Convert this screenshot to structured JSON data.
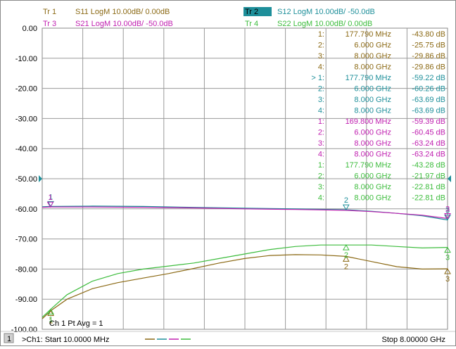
{
  "traces": [
    {
      "label": "Tr 1",
      "desc": "S11 LogM 10.00dB/  0.00dB",
      "color": "#8b6914",
      "active": false
    },
    {
      "label": "Tr 2",
      "desc": "S12 LogM 10.00dB/  -50.0dB",
      "color": "#1e8f9a",
      "active": true
    },
    {
      "label": "Tr 3",
      "desc": "S21 LogM 10.00dB/  -50.0dB",
      "color": "#c020b0",
      "active": false
    },
    {
      "label": "Tr 4",
      "desc": "S22 LogM 10.00dB/  0.00dB",
      "color": "#3cbc3c",
      "active": false
    }
  ],
  "marker_table": [
    {
      "id": "1:",
      "freq": "177.790 MHz",
      "value": "-43.80 dB",
      "color": "#8b6914"
    },
    {
      "id": "2:",
      "freq": "6.000 GHz",
      "value": "-25.75 dB",
      "color": "#8b6914"
    },
    {
      "id": "3:",
      "freq": "8.000 GHz",
      "value": "-29.86 dB",
      "color": "#8b6914"
    },
    {
      "id": "4:",
      "freq": "8.000 GHz",
      "value": "-29.86 dB",
      "color": "#8b6914"
    },
    {
      "id": "> 1:",
      "freq": "177.790 MHz",
      "value": "-59.22 dB",
      "color": "#1e8f9a"
    },
    {
      "id": "2:",
      "freq": "6.000 GHz",
      "value": "-60.26 dB",
      "color": "#1e8f9a"
    },
    {
      "id": "3:",
      "freq": "8.000 GHz",
      "value": "-63.69 dB",
      "color": "#1e8f9a"
    },
    {
      "id": "4:",
      "freq": "8.000 GHz",
      "value": "-63.69 dB",
      "color": "#1e8f9a"
    },
    {
      "id": "1:",
      "freq": "169.800 MHz",
      "value": "-59.39 dB",
      "color": "#c020b0"
    },
    {
      "id": "2:",
      "freq": "6.000 GHz",
      "value": "-60.45 dB",
      "color": "#c020b0"
    },
    {
      "id": "3:",
      "freq": "8.000 GHz",
      "value": "-63.24 dB",
      "color": "#c020b0"
    },
    {
      "id": "4:",
      "freq": "8.000 GHz",
      "value": "-63.24 dB",
      "color": "#c020b0"
    },
    {
      "id": "1:",
      "freq": "177.790 MHz",
      "value": "-43.28 dB",
      "color": "#3cbc3c"
    },
    {
      "id": "2:",
      "freq": "6.000 GHz",
      "value": "-21.97 dB",
      "color": "#3cbc3c"
    },
    {
      "id": "3:",
      "freq": "8.000 GHz",
      "value": "-22.81 dB",
      "color": "#3cbc3c"
    },
    {
      "id": "4:",
      "freq": "8.000 GHz",
      "value": "-22.81 dB",
      "color": "#3cbc3c"
    }
  ],
  "avg_text": "Ch 1 Pt Avg = 1",
  "footer": {
    "channel_num": "1",
    "start_text": ">Ch1: Start  10.0000 MHz",
    "stop_text": "Stop  8.00000 GHz",
    "trace_colors": [
      "#8b6914",
      "#1e8f9a",
      "#c020b0",
      "#3cbc3c"
    ]
  },
  "chart_data": {
    "type": "line",
    "xlim": [
      0.01,
      8.0
    ],
    "ylim": [
      -100,
      0
    ],
    "grid": true,
    "yticks": [
      "0.00",
      "-10.00",
      "-20.00",
      "-30.00",
      "-40.00",
      "-50.00",
      "-60.00",
      "-70.00",
      "-80.00",
      "-90.00",
      "-100.00"
    ],
    "reference_level": -50,
    "series": [
      {
        "name": "S11",
        "color": "#8b6914",
        "x": [
          0.01,
          0.18,
          0.5,
          1.0,
          1.5,
          2.0,
          2.5,
          3.0,
          3.5,
          4.0,
          4.5,
          5.0,
          5.5,
          6.0,
          6.5,
          7.0,
          7.5,
          8.0
        ],
        "y": [
          -96.5,
          -93.8,
          -90.0,
          -86.5,
          -84.5,
          -83.0,
          -81.5,
          -79.8,
          -78.0,
          -76.5,
          -75.5,
          -75.2,
          -75.3,
          -75.8,
          -77.5,
          -79.2,
          -80.0,
          -79.9
        ]
      },
      {
        "name": "S12",
        "color": "#1e8f9a",
        "x": [
          0.01,
          0.18,
          1.0,
          2.0,
          3.0,
          4.0,
          5.0,
          6.0,
          6.5,
          7.0,
          7.5,
          8.0
        ],
        "y": [
          -59.3,
          -59.2,
          -59.1,
          -59.2,
          -59.5,
          -59.8,
          -60.0,
          -60.3,
          -60.8,
          -61.5,
          -62.3,
          -63.7
        ]
      },
      {
        "name": "S21",
        "color": "#c020b0",
        "x": [
          0.01,
          0.17,
          1.0,
          2.0,
          3.0,
          4.0,
          5.0,
          6.0,
          6.5,
          7.0,
          7.5,
          8.0
        ],
        "y": [
          -59.5,
          -59.4,
          -59.4,
          -59.5,
          -59.7,
          -60.0,
          -60.2,
          -60.5,
          -60.9,
          -61.5,
          -62.1,
          -63.2
        ]
      },
      {
        "name": "S22",
        "color": "#3cbc3c",
        "x": [
          0.01,
          0.18,
          0.5,
          1.0,
          1.5,
          2.0,
          2.5,
          3.0,
          3.5,
          4.0,
          4.5,
          5.0,
          5.5,
          6.0,
          6.5,
          7.0,
          7.5,
          8.0
        ],
        "y": [
          -96.0,
          -93.3,
          -88.5,
          -84.0,
          -81.5,
          -80.0,
          -79.0,
          -78.0,
          -76.5,
          -75.0,
          -73.5,
          -72.5,
          -72.0,
          -72.0,
          -72.0,
          -72.5,
          -73.0,
          -72.8
        ]
      }
    ],
    "markers": [
      {
        "series": "S11",
        "x": 0.17779,
        "y": -93.8,
        "labels": [
          "1"
        ]
      },
      {
        "series": "S11",
        "x": 6.0,
        "y": -75.8,
        "labels": [
          "2"
        ]
      },
      {
        "series": "S11",
        "x": 8.0,
        "y": -79.9,
        "labels": [
          "3"
        ]
      },
      {
        "series": "S12",
        "x": 0.17779,
        "y": -59.2,
        "labels": [
          "1"
        ]
      },
      {
        "series": "S12",
        "x": 6.0,
        "y": -60.3,
        "labels": [
          "2"
        ]
      },
      {
        "series": "S12",
        "x": 8.0,
        "y": -63.7,
        "labels": [
          "3"
        ]
      },
      {
        "series": "S21",
        "x": 0.1698,
        "y": -59.4,
        "labels": [
          "1"
        ]
      },
      {
        "series": "S21",
        "x": 8.0,
        "y": -63.2,
        "labels": [
          "3"
        ]
      },
      {
        "series": "S22",
        "x": 0.17779,
        "y": -93.3,
        "labels": [
          "1"
        ]
      },
      {
        "series": "S22",
        "x": 6.0,
        "y": -72.0,
        "labels": [
          "2"
        ]
      },
      {
        "series": "S22",
        "x": 8.0,
        "y": -72.8,
        "labels": [
          "3"
        ]
      }
    ]
  }
}
